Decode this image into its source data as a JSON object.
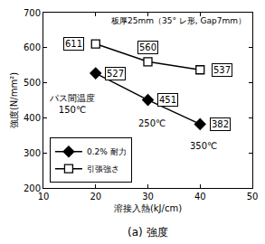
{
  "chart_data": {
    "type": "line",
    "title": "(a) 強度",
    "subtitle": "板厚25mm（35° レ形, Gap7mm）",
    "x_label": "溶接入熱(kJ/cm)",
    "y_label": "強度(N/mm²)",
    "x": [
      20,
      30,
      40
    ],
    "series": [
      {
        "name": "0.2% 耐力",
        "color": "#000000",
        "marker": "diamond",
        "values": [
          527,
          451,
          382
        ]
      },
      {
        "name": "引張強さ",
        "color": "#000000",
        "marker": "square-open",
        "values": [
          611,
          560,
          537
        ]
      }
    ],
    "xlim": [
      10,
      50
    ],
    "xticks": [
      10,
      20,
      30,
      40,
      50
    ],
    "ylim": [
      200,
      700
    ],
    "yticks": [
      200,
      300,
      400,
      500,
      600,
      700
    ],
    "grid": false,
    "legend": "lower left",
    "data_labels": true,
    "annotations": [
      "パス間温度 150℃",
      "250℃",
      "350℃"
    ]
  }
}
